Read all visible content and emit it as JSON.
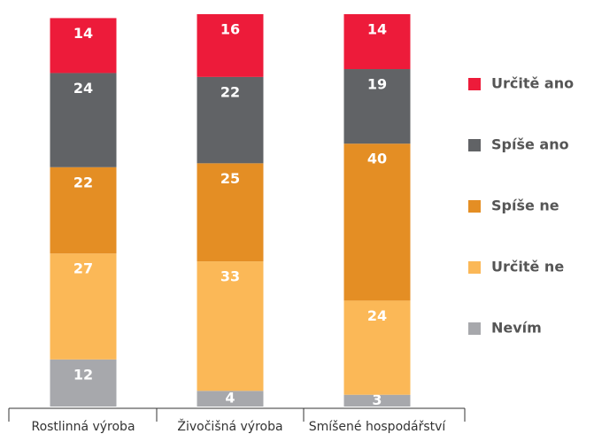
{
  "chart_data": {
    "type": "stacked_bar",
    "categories": [
      "Rostlinná výroba",
      "Živočišná výroba",
      "Smíšené hospodářství"
    ],
    "ylim": [
      0,
      100
    ],
    "series": [
      {
        "name": "Nevím",
        "color": "#a7a8ac",
        "values": [
          12,
          4,
          3
        ]
      },
      {
        "name": "Určitě ne",
        "color": "#fbb857",
        "values": [
          27,
          33,
          24
        ]
      },
      {
        "name": "Spíše ne",
        "color": "#e48e24",
        "values": [
          22,
          25,
          40
        ]
      },
      {
        "name": "Spíše ano",
        "color": "#616366",
        "values": [
          24,
          22,
          19
        ]
      },
      {
        "name": "Určitě ano",
        "color": "#ed1b3a",
        "values": [
          14,
          16,
          14
        ]
      }
    ]
  }
}
